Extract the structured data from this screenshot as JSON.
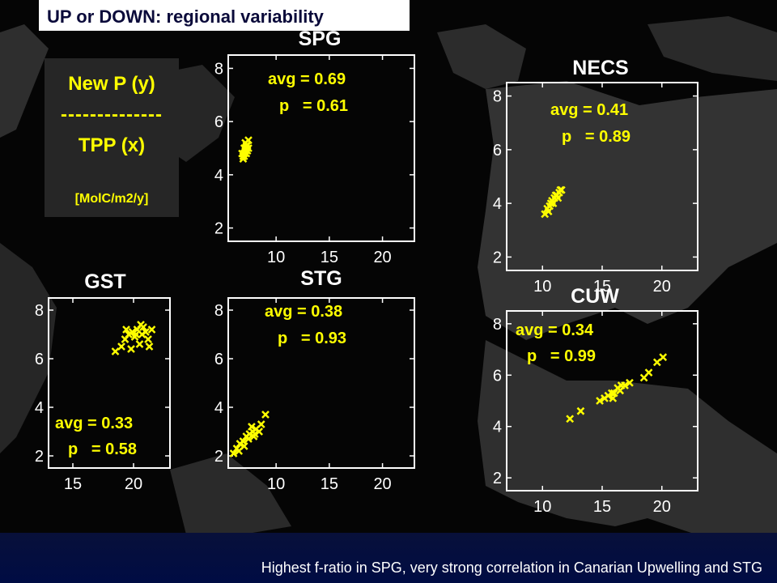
{
  "slide": {
    "title": "UP or DOWN: regional variability",
    "footer": "Highest f-ratio in SPG, very strong correlation in Canarian Upwelling and STG"
  },
  "legend": {
    "line1": "New P (y)",
    "line2": "--------------",
    "line3": "TPP (x)",
    "line4": "[MolC/m2/y]"
  },
  "colors": {
    "background": "#000000",
    "axes_frame": "#ffffff",
    "marker": "#ffff00",
    "title_text": "#0a0a3a"
  },
  "chart_data": [
    {
      "type": "scatter",
      "title": "SPG",
      "stats": {
        "avg": "avg = 0.69",
        "p": "p   = 0.61"
      },
      "xlim": [
        5.5,
        23
      ],
      "ylim": [
        1.5,
        8.5
      ],
      "xticks": [
        10,
        15,
        20
      ],
      "yticks": [
        2,
        4,
        6,
        8
      ],
      "marker": "x",
      "points": [
        [
          6.9,
          4.6
        ],
        [
          7.0,
          4.8
        ],
        [
          7.1,
          4.9
        ],
        [
          7.2,
          5.0
        ],
        [
          7.3,
          5.1
        ],
        [
          7.4,
          5.3
        ],
        [
          6.9,
          4.7
        ],
        [
          7.0,
          5.0
        ],
        [
          7.2,
          4.8
        ],
        [
          7.1,
          5.2
        ],
        [
          7.3,
          4.9
        ],
        [
          7.0,
          4.7
        ],
        [
          7.2,
          5.1
        ],
        [
          7.4,
          5.0
        ],
        [
          6.8,
          4.8
        ]
      ]
    },
    {
      "type": "scatter",
      "title": "NECS",
      "stats": {
        "avg": "avg = 0.41",
        "p": "p   = 0.89"
      },
      "xlim": [
        7,
        23
      ],
      "ylim": [
        1.5,
        8.5
      ],
      "xticks": [
        10,
        15,
        20
      ],
      "yticks": [
        2,
        4,
        6,
        8
      ],
      "marker": "x",
      "points": [
        [
          10.2,
          3.6
        ],
        [
          10.4,
          3.8
        ],
        [
          10.6,
          3.9
        ],
        [
          10.8,
          4.1
        ],
        [
          11.0,
          4.2
        ],
        [
          11.2,
          4.3
        ],
        [
          11.4,
          4.4
        ],
        [
          11.6,
          4.5
        ],
        [
          10.5,
          3.7
        ],
        [
          10.9,
          4.0
        ],
        [
          11.1,
          4.3
        ],
        [
          11.5,
          4.5
        ],
        [
          10.7,
          4.0
        ],
        [
          11.3,
          4.2
        ]
      ]
    },
    {
      "type": "scatter",
      "title": "GST",
      "stats": {
        "avg": "avg = 0.33",
        "p": "p   = 0.58"
      },
      "xlim": [
        13,
        23
      ],
      "ylim": [
        1.5,
        8.5
      ],
      "xticks": [
        15,
        20
      ],
      "yticks": [
        2,
        4,
        6,
        8
      ],
      "marker": "x",
      "points": [
        [
          18.5,
          6.3
        ],
        [
          19.0,
          6.5
        ],
        [
          19.3,
          6.8
        ],
        [
          19.6,
          7.0
        ],
        [
          19.9,
          7.1
        ],
        [
          20.1,
          6.9
        ],
        [
          20.3,
          7.2
        ],
        [
          20.6,
          7.4
        ],
        [
          20.8,
          7.3
        ],
        [
          21.0,
          7.1
        ],
        [
          21.2,
          6.8
        ],
        [
          20.5,
          6.6
        ],
        [
          19.8,
          6.4
        ],
        [
          20.2,
          7.0
        ],
        [
          21.3,
          6.5
        ],
        [
          20.7,
          7.0
        ],
        [
          19.4,
          7.2
        ],
        [
          21.5,
          7.2
        ]
      ]
    },
    {
      "type": "scatter",
      "title": "STG",
      "stats": {
        "avg": "avg = 0.38",
        "p": "p   = 0.93"
      },
      "xlim": [
        5.5,
        23
      ],
      "ylim": [
        1.5,
        8.5
      ],
      "xticks": [
        10,
        15,
        20
      ],
      "yticks": [
        2,
        4,
        6,
        8
      ],
      "marker": "x",
      "points": [
        [
          6.0,
          2.1
        ],
        [
          6.3,
          2.3
        ],
        [
          6.6,
          2.5
        ],
        [
          6.9,
          2.6
        ],
        [
          7.2,
          2.8
        ],
        [
          7.5,
          2.9
        ],
        [
          7.8,
          3.0
        ],
        [
          8.1,
          3.1
        ],
        [
          8.4,
          3.0
        ],
        [
          7.0,
          2.4
        ],
        [
          7.4,
          2.7
        ],
        [
          7.7,
          3.2
        ],
        [
          8.0,
          2.9
        ],
        [
          8.6,
          3.3
        ],
        [
          9.0,
          3.7
        ],
        [
          6.5,
          2.2
        ],
        [
          7.9,
          2.8
        ]
      ]
    },
    {
      "type": "scatter",
      "title": "CUW",
      "stats": {
        "avg": "avg = 0.34",
        "p": "p   = 0.99"
      },
      "xlim": [
        7,
        23
      ],
      "ylim": [
        1.5,
        8.5
      ],
      "xticks": [
        10,
        15,
        20
      ],
      "yticks": [
        2,
        4,
        6,
        8
      ],
      "marker": "x",
      "points": [
        [
          12.3,
          4.3
        ],
        [
          13.2,
          4.6
        ],
        [
          14.8,
          5.0
        ],
        [
          15.2,
          5.1
        ],
        [
          15.5,
          5.2
        ],
        [
          15.8,
          5.3
        ],
        [
          16.0,
          5.3
        ],
        [
          16.3,
          5.5
        ],
        [
          16.6,
          5.6
        ],
        [
          16.9,
          5.6
        ],
        [
          17.3,
          5.7
        ],
        [
          18.5,
          5.9
        ],
        [
          18.9,
          6.1
        ],
        [
          19.6,
          6.5
        ],
        [
          20.1,
          6.7
        ],
        [
          15.9,
          5.1
        ],
        [
          16.5,
          5.4
        ]
      ]
    }
  ]
}
